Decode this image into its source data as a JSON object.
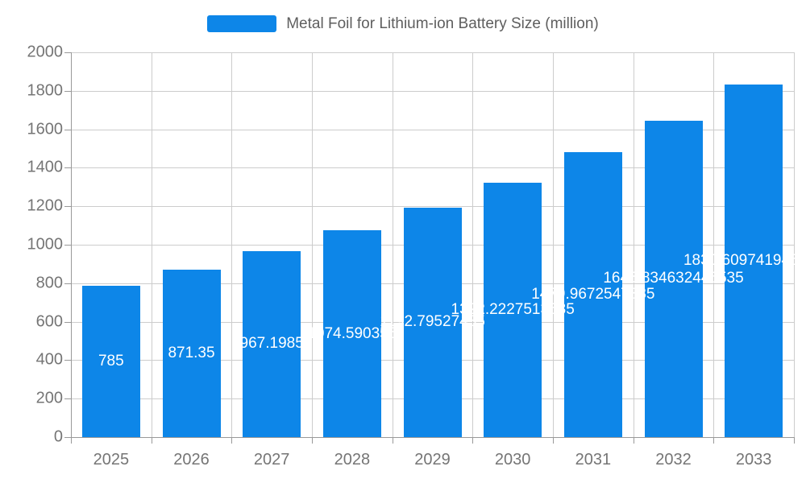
{
  "legend": {
    "series_label": "Metal Foil for Lithium-ion Battery Size (million)"
  },
  "colors": {
    "bar": "#0D86E8",
    "axis_line": "#999999",
    "grid_line": "#CCCCCC",
    "tick_label": "#757575",
    "legend_text": "#5E5E5E",
    "value_label": "#FFFFFF",
    "background": "#FFFFFF"
  },
  "chart_data": {
    "type": "bar",
    "title": "Metal Foil for Lithium-ion Battery Size (million)",
    "categories": [
      "2025",
      "2026",
      "2027",
      "2028",
      "2029",
      "2030",
      "2031",
      "2032",
      "2033"
    ],
    "values": [
      785,
      871.35,
      967.1985,
      1074.590356,
      1192.79527435,
      1322.2227513535,
      1479.9672547385,
      1645.834632446535,
      1830.609741946535
    ],
    "value_labels": [
      "785",
      "871.35",
      "967.1985",
      "1074.590356",
      "1192.79527435",
      "1322.2227513535",
      "1479.9672547385",
      "1645.834632446535",
      "1830.609741946535"
    ],
    "value_label_position": "inside-center",
    "xlabel": "",
    "ylabel": "",
    "ylim": [
      0,
      2000
    ],
    "ytick_step": 200,
    "ytick_labels": [
      "0",
      "200",
      "400",
      "600",
      "800",
      "1000",
      "1200",
      "1400",
      "1600",
      "1800",
      "2000"
    ],
    "grid": true,
    "legend_position": "top-center"
  }
}
